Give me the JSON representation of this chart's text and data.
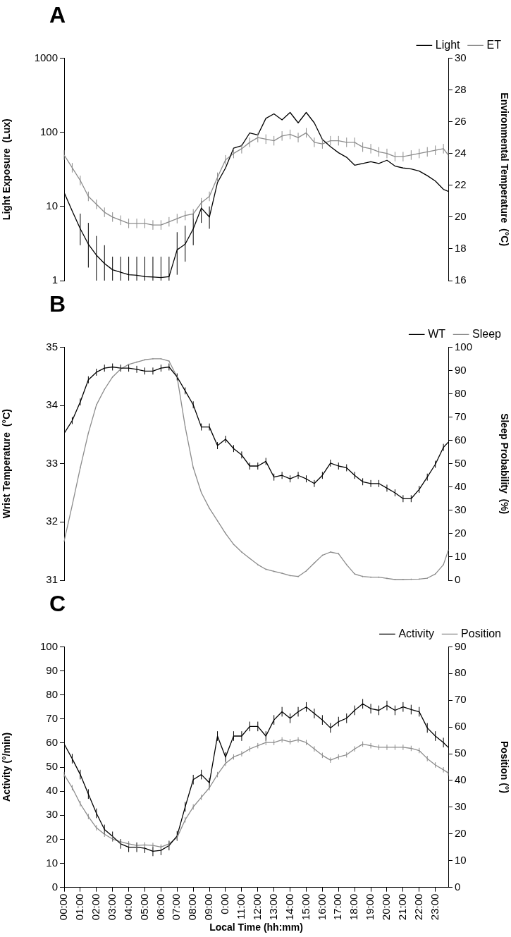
{
  "chart_data": [
    {
      "type": "line",
      "title": "A",
      "ylabel": "Light Exposure  (Lux)",
      "y2label": "Environmental Temperature  (°C)",
      "log": "y",
      "legend": "top right",
      "tick_labels": "y",
      "grid": false,
      "marker": "none",
      "x": [
        0,
        0.5,
        1,
        1.5,
        2,
        2.5,
        3,
        3.5,
        4,
        4.5,
        5,
        5.5,
        6,
        6.5,
        7,
        7.5,
        8,
        8.5,
        9,
        9.5,
        10,
        10.5,
        11,
        11.5,
        12,
        12.5,
        13,
        13.5,
        14,
        14.5,
        15,
        15.5,
        16,
        16.5,
        17,
        17.5,
        18,
        18.5,
        19,
        19.5,
        20,
        20.5,
        21,
        21.5,
        22,
        22.5,
        23,
        23.5,
        23.8
      ],
      "xlim": [
        0,
        23.8
      ],
      "ylim": [
        1,
        1000
      ],
      "yticks": [
        1,
        10,
        100,
        1000
      ],
      "y2lim": [
        16,
        30
      ],
      "y2ticks": [
        16,
        18,
        20,
        22,
        24,
        26,
        28,
        30
      ],
      "series": [
        {
          "name": "Light",
          "color": "#000000",
          "values": [
            15.4,
            8.7,
            5.0,
            3.1,
            2.2,
            1.7,
            1.4,
            1.3,
            1.2,
            1.18,
            1.13,
            1.12,
            1.1,
            1.13,
            2.6,
            3.1,
            5,
            9.5,
            7.2,
            21,
            33,
            61,
            66,
            98,
            92,
            154,
            177,
            147,
            185,
            134,
            185,
            134,
            80,
            64,
            53,
            46,
            36,
            38,
            40,
            38,
            42,
            35,
            33,
            32,
            30,
            26,
            22,
            17,
            16
          ],
          "errors": [
            null,
            null,
            [
              3,
              8
            ],
            [
              1.5,
              6
            ],
            [
              1,
              4
            ],
            [
              1,
              3
            ],
            [
              1,
              2.1
            ],
            [
              1,
              2.1
            ],
            [
              1,
              2.1
            ],
            [
              1,
              2.1
            ],
            [
              1,
              2.1
            ],
            [
              1,
              2.1
            ],
            [
              1,
              2.1
            ],
            [
              1,
              2.1
            ],
            [
              1.2,
              4.5
            ],
            [
              1.8,
              5.5
            ],
            [
              3,
              8
            ],
            [
              6,
              12
            ],
            [
              5,
              10
            ],
            null,
            null,
            null,
            null,
            null,
            null,
            null,
            null,
            null,
            null,
            null,
            null,
            null,
            null,
            null,
            null,
            null,
            null,
            null,
            null,
            null,
            null,
            null,
            null,
            null,
            null,
            null,
            null,
            null,
            null
          ]
        },
        {
          "name": "ET",
          "color": "#8c8c8c",
          "axis": "y2",
          "values": [
            23.9,
            23.1,
            22.3,
            21.3,
            20.8,
            20.3,
            20.0,
            19.8,
            19.6,
            19.6,
            19.6,
            19.5,
            19.5,
            19.7,
            19.9,
            20.1,
            20.2,
            20.9,
            21.3,
            22.5,
            23.6,
            24.0,
            24.3,
            24.7,
            25.0,
            24.9,
            24.8,
            25.1,
            25.2,
            25.0,
            25.3,
            24.7,
            24.6,
            24.8,
            24.8,
            24.7,
            24.7,
            24.4,
            24.3,
            24.1,
            24.0,
            23.8,
            23.8,
            23.9,
            24.0,
            24.1,
            24.2,
            24.3,
            23.9
          ],
          "errors": [
            0.3,
            0.3,
            0.3,
            0.3,
            0.3,
            0.3,
            0.3,
            0.3,
            0.3,
            0.3,
            0.3,
            0.3,
            0.3,
            0.3,
            0.3,
            0.3,
            0.3,
            0.3,
            0.3,
            0.3,
            0.3,
            0.3,
            0.3,
            0.3,
            0.3,
            0.3,
            0.3,
            0.3,
            0.3,
            0.3,
            0.3,
            0.3,
            0.3,
            0.3,
            0.3,
            0.3,
            0.3,
            0.3,
            0.3,
            0.3,
            0.3,
            0.3,
            0.3,
            0.3,
            0.3,
            0.3,
            0.3,
            0.3,
            0.3
          ]
        }
      ]
    },
    {
      "type": "line",
      "title": "B",
      "ylabel": "Wrist Temperature  (°C)",
      "y2label": "Sleep Probability  (%)",
      "legend": "top right",
      "tick_labels": "y",
      "grid": false,
      "marker": "none",
      "x": [
        0,
        0.5,
        1,
        1.5,
        2,
        2.5,
        3,
        3.5,
        4,
        4.5,
        5,
        5.5,
        6,
        6.5,
        7,
        7.5,
        8,
        8.5,
        9,
        9.5,
        10,
        10.5,
        11,
        11.5,
        12,
        12.5,
        13,
        13.5,
        14,
        14.5,
        15,
        15.5,
        16,
        16.5,
        17,
        17.5,
        18,
        18.5,
        19,
        19.5,
        20,
        20.5,
        21,
        21.5,
        22,
        22.5,
        23,
        23.5,
        23.8
      ],
      "xlim": [
        0,
        23.8
      ],
      "ylim": [
        31,
        35
      ],
      "yticks": [
        31,
        32,
        33,
        34,
        35
      ],
      "y2lim": [
        0,
        100
      ],
      "y2ticks": [
        0,
        10,
        20,
        30,
        40,
        50,
        60,
        70,
        80,
        90,
        100
      ],
      "series": [
        {
          "name": "WT",
          "color": "#000000",
          "values": [
            33.52,
            33.74,
            34.06,
            34.44,
            34.57,
            34.64,
            34.66,
            34.64,
            34.64,
            34.62,
            34.59,
            34.59,
            34.64,
            34.66,
            34.49,
            34.25,
            34.01,
            33.63,
            33.63,
            33.31,
            33.42,
            33.26,
            33.15,
            32.96,
            32.96,
            33.04,
            32.77,
            32.8,
            32.74,
            32.8,
            32.74,
            32.66,
            32.8,
            33.01,
            32.96,
            32.93,
            32.8,
            32.69,
            32.66,
            32.66,
            32.58,
            32.5,
            32.4,
            32.4,
            32.56,
            32.77,
            32.99,
            33.28,
            33.37
          ],
          "errors": [
            null,
            0.06,
            0.06,
            0.06,
            0.06,
            0.06,
            0.06,
            0.06,
            0.06,
            0.06,
            0.06,
            0.06,
            0.06,
            0.06,
            0.06,
            0.06,
            0.06,
            0.06,
            0.06,
            0.06,
            0.06,
            0.06,
            0.06,
            0.06,
            0.06,
            0.06,
            0.06,
            0.06,
            0.06,
            0.06,
            0.06,
            0.06,
            0.06,
            0.06,
            0.06,
            0.06,
            0.06,
            0.06,
            0.06,
            0.06,
            0.06,
            0.06,
            0.06,
            0.06,
            0.06,
            0.06,
            0.06,
            0.06,
            null
          ]
        },
        {
          "name": "Sleep",
          "color": "#8c8c8c",
          "axis": "y2",
          "values": [
            16.8,
            32.2,
            48.3,
            63.1,
            75.2,
            81.9,
            87.2,
            90.6,
            92.6,
            93.6,
            94.6,
            95.0,
            95.0,
            94.0,
            87.2,
            65.8,
            48.3,
            37.6,
            30.9,
            25.5,
            20.1,
            15.4,
            12.1,
            9.4,
            6.7,
            4.7,
            3.8,
            3.0,
            2.0,
            1.6,
            4.0,
            7.4,
            10.7,
            12.1,
            11.4,
            6.7,
            2.7,
            1.6,
            1.3,
            1.3,
            0.8,
            0.3,
            0.3,
            0.4,
            0.5,
            0.9,
            2.7,
            6.7,
            12.8
          ],
          "errors": [
            0.3,
            0.3,
            0.3,
            0.3,
            0.3,
            0.3,
            0.3,
            0.3,
            0.3,
            0.3,
            0.3,
            0.3,
            0.3,
            0.3,
            0.3,
            0.3,
            0.3,
            0.3,
            0.3,
            0.3,
            0.3,
            0.3,
            0.3,
            0.3,
            0.3,
            0.3,
            0.3,
            0.3,
            0.3,
            0.3,
            0.3,
            0.3,
            0.3,
            0.3,
            0.3,
            0.3,
            0.3,
            0.3,
            0.3,
            0.3,
            0.3,
            0.3,
            0.3,
            0.3,
            0.3,
            0.3,
            0.3,
            0.3,
            0.3
          ]
        }
      ]
    },
    {
      "type": "line",
      "title": "C",
      "xlabel": "Local Time (hh:mm)",
      "ylabel": "Activity (°/min)",
      "y2label": "Position (°)",
      "legend": "top right",
      "grid": false,
      "marker": "none",
      "x": [
        0,
        0.5,
        1,
        1.5,
        2,
        2.5,
        3,
        3.5,
        4,
        4.5,
        5,
        5.5,
        6,
        6.5,
        7,
        7.5,
        8,
        8.5,
        9,
        9.5,
        10,
        10.5,
        11,
        11.5,
        12,
        12.5,
        13,
        13.5,
        14,
        14.5,
        15,
        15.5,
        16,
        16.5,
        17,
        17.5,
        18,
        18.5,
        19,
        19.5,
        20,
        20.5,
        21,
        21.5,
        22,
        22.5,
        23,
        23.5,
        23.8
      ],
      "xlim": [
        0,
        23.8
      ],
      "xticks": [
        {
          "value": 0,
          "label": "00:00"
        },
        {
          "value": 1,
          "label": "01:00"
        },
        {
          "value": 2,
          "label": "02:00"
        },
        {
          "value": 3,
          "label": "03:00"
        },
        {
          "value": 4,
          "label": "04:00"
        },
        {
          "value": 5,
          "label": "05:00"
        },
        {
          "value": 6,
          "label": "06:00"
        },
        {
          "value": 7,
          "label": "07:00"
        },
        {
          "value": 8,
          "label": "08:00"
        },
        {
          "value": 9,
          "label": "09:00"
        },
        {
          "value": 10,
          "label": "0:00"
        },
        {
          "value": 11,
          "label": "11:00"
        },
        {
          "value": 12,
          "label": "12:00"
        },
        {
          "value": 13,
          "label": "13:00"
        },
        {
          "value": 14,
          "label": "14:00"
        },
        {
          "value": 15,
          "label": "15:00"
        },
        {
          "value": 16,
          "label": "16:00"
        },
        {
          "value": 17,
          "label": "17:00"
        },
        {
          "value": 18,
          "label": "18:00"
        },
        {
          "value": 19,
          "label": "19:00"
        },
        {
          "value": 20,
          "label": "20:00"
        },
        {
          "value": 21,
          "label": "21:00"
        },
        {
          "value": 22,
          "label": "22:00"
        },
        {
          "value": 23,
          "label": "23:00"
        }
      ],
      "ylim": [
        0,
        100
      ],
      "yticks": [
        0,
        10,
        20,
        30,
        40,
        50,
        60,
        70,
        80,
        90,
        100
      ],
      "y2lim": [
        0,
        90
      ],
      "y2ticks": [
        0,
        10,
        20,
        30,
        40,
        50,
        60,
        70,
        80,
        90
      ],
      "series": [
        {
          "name": "Activity",
          "color": "#000000",
          "values": [
            59.6,
            53.5,
            46.9,
            38.8,
            30.8,
            24.1,
            21.2,
            18.1,
            16.7,
            16.7,
            16.3,
            15.0,
            15.4,
            17.4,
            21.4,
            33.5,
            44.8,
            46.9,
            43.5,
            62.9,
            54.2,
            62.9,
            62.9,
            66.9,
            66.9,
            62.9,
            69.6,
            73.0,
            70.3,
            73.0,
            75.0,
            72.3,
            69.6,
            66.3,
            68.9,
            70.3,
            73.6,
            76.3,
            74.3,
            73.6,
            75.6,
            73.6,
            75.0,
            73.9,
            73.0,
            66.3,
            62.9,
            60.2,
            58.2
          ],
          "errors": [
            null,
            2,
            2,
            2,
            2,
            2,
            2,
            2,
            2,
            2,
            2,
            2,
            2,
            2,
            2,
            2,
            2,
            2,
            2,
            2,
            2,
            2,
            2,
            2,
            2,
            2,
            2,
            2,
            2,
            2,
            2,
            2,
            2,
            2,
            2,
            2,
            2,
            2,
            2,
            2,
            2,
            2,
            2,
            2,
            2,
            2,
            2,
            2,
            null
          ]
        },
        {
          "name": "Position",
          "color": "#8c8c8c",
          "axis": "y2",
          "values": [
            42.2,
            37.3,
            31.3,
            26.5,
            22.3,
            19.9,
            18.1,
            17.1,
            16.3,
            15.7,
            15.9,
            15.7,
            15.1,
            16.3,
            18.7,
            25.3,
            30.1,
            33.7,
            37.3,
            42.2,
            46.4,
            48.8,
            50.0,
            51.8,
            53.0,
            54.2,
            54.2,
            55.2,
            54.5,
            55.2,
            54.2,
            51.8,
            49.4,
            47.6,
            48.8,
            49.6,
            51.8,
            53.6,
            53.0,
            52.4,
            52.4,
            52.4,
            52.4,
            52.0,
            51.2,
            48.2,
            45.8,
            44.0,
            42.8
          ],
          "errors": [
            1,
            1,
            1,
            1,
            1,
            1,
            1,
            1,
            1,
            1,
            1,
            1,
            1,
            1,
            1,
            1,
            1,
            1,
            1,
            1,
            1,
            1,
            1,
            1,
            1,
            1,
            1,
            1,
            1,
            1,
            1,
            1,
            1,
            1,
            1,
            1,
            1,
            1,
            1,
            1,
            1,
            1,
            1,
            1,
            1,
            1,
            1,
            1,
            1
          ]
        }
      ]
    }
  ]
}
